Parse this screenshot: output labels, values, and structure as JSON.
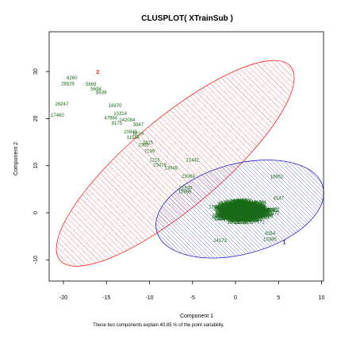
{
  "chart_data": {
    "type": "scatter",
    "title": "CLUSPLOT( XTrainSub )",
    "xlabel": "Component 1",
    "ylabel": "Component 2",
    "note": "These two components explain 40.85 % of the point variability.",
    "xlim": [
      -22,
      10
    ],
    "ylim": [
      -11,
      30
    ],
    "x_ticks": [
      -20,
      -15,
      -10,
      -5,
      0,
      5,
      10
    ],
    "y_ticks": [
      -10,
      0,
      10,
      20,
      30
    ],
    "grid": false,
    "colors": {
      "points": "#1a6b1a",
      "cluster1": "#ff2020",
      "cluster2": "#2020cc",
      "axes": "#000000"
    },
    "clusters": [
      {
        "label": "2",
        "color": "#ff2020",
        "center": [
          -7.0,
          10.5
        ],
        "major_radius": 17.5,
        "minor_radius": 6.0,
        "angle_deg": 40
      },
      {
        "label": "1",
        "color": "#2020cc",
        "center": [
          0.5,
          0.8
        ],
        "major_radius": 10.0,
        "minor_radius": 6.0,
        "angle_deg": 15
      }
    ],
    "point_labels": [
      {
        "t": "8260",
        "x": -19.0,
        "y": 28.3
      },
      {
        "t": "28829",
        "x": -19.5,
        "y": 27.1
      },
      {
        "t": "5869",
        "x": -16.8,
        "y": 27.0
      },
      {
        "t": "5694",
        "x": -16.2,
        "y": 26.0
      },
      {
        "t": "8639",
        "x": -15.6,
        "y": 25.2
      },
      {
        "t": "26247",
        "x": -20.2,
        "y": 22.8
      },
      {
        "t": "16970",
        "x": -14.0,
        "y": 22.4
      },
      {
        "t": "17460",
        "x": -20.7,
        "y": 20.4
      },
      {
        "t": "10314",
        "x": -13.4,
        "y": 20.7
      },
      {
        "t": "47984",
        "x": -14.5,
        "y": 19.8
      },
      {
        "t": "142084",
        "x": -12.6,
        "y": 19.4
      },
      {
        "t": "8175",
        "x": -13.8,
        "y": 18.7
      },
      {
        "t": "3947",
        "x": -11.3,
        "y": 18.4
      },
      {
        "t": "20849",
        "x": -12.2,
        "y": 16.9
      },
      {
        "t": "6109",
        "x": -11.3,
        "y": 16.4
      },
      {
        "t": "11584",
        "x": -11.9,
        "y": 15.7
      },
      {
        "t": "2415",
        "x": -10.2,
        "y": 14.6
      },
      {
        "t": "2306",
        "x": -10.7,
        "y": 14.1
      },
      {
        "t": "7199",
        "x": -10.0,
        "y": 12.7
      },
      {
        "t": "1218",
        "x": -9.4,
        "y": 10.9
      },
      {
        "t": "21442",
        "x": -5.0,
        "y": 10.9
      },
      {
        "t": "23419",
        "x": -8.8,
        "y": 9.9
      },
      {
        "t": "13948",
        "x": -7.5,
        "y": 9.2
      },
      {
        "t": "23069",
        "x": -5.5,
        "y": 7.4
      },
      {
        "t": "21936",
        "x": -5.8,
        "y": 5.0
      },
      {
        "t": "15996",
        "x": -5.9,
        "y": 4.1
      },
      {
        "t": "16951",
        "x": 4.8,
        "y": 7.3
      },
      {
        "t": "4147",
        "x": 5.0,
        "y": 2.8
      },
      {
        "t": "1972",
        "x": 4.5,
        "y": 0.3
      },
      {
        "t": "4354",
        "x": 4.0,
        "y": -4.7
      },
      {
        "t": "19395",
        "x": 4.0,
        "y": -6.0
      },
      {
        "t": "24173",
        "x": -1.8,
        "y": -6.2
      }
    ]
  }
}
